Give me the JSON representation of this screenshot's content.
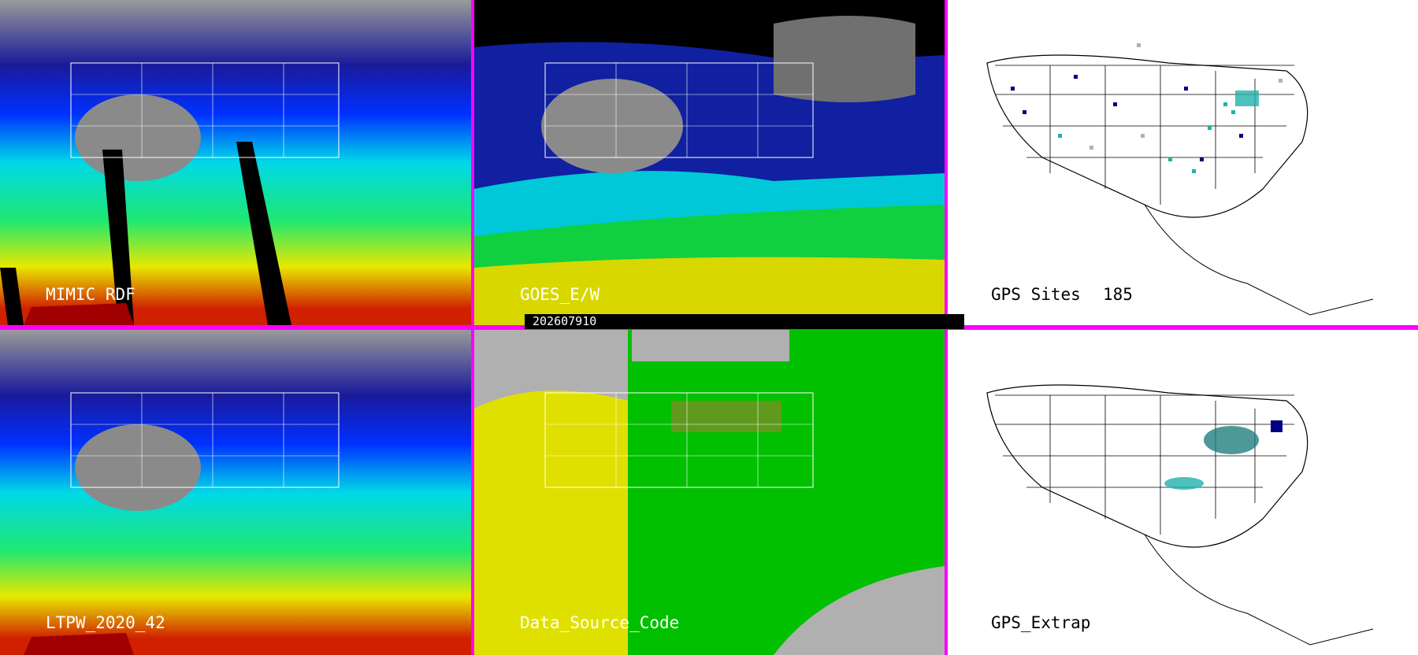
{
  "timestamp": "202607910",
  "panels": [
    {
      "id": "mimic",
      "label": "MIMIC RDF"
    },
    {
      "id": "goes",
      "label": "GOES_E/W"
    },
    {
      "id": "gps-sites",
      "label": "GPS Sites",
      "count": "185"
    },
    {
      "id": "ltpw",
      "label": "LTPW_2020_42"
    },
    {
      "id": "data-source",
      "label": "Data_Source_Code"
    },
    {
      "id": "gps-extrap",
      "label": "GPS_Extrap"
    }
  ],
  "colors": {
    "divider": "#ff00ff",
    "tpw_scale": [
      "#808080",
      "#000080",
      "#0000ff",
      "#00e0e0",
      "#00ff80",
      "#ffff00",
      "#ff8000",
      "#c00000"
    ],
    "source_yellow": "#e0e000",
    "source_green": "#00c000",
    "source_gray": "#b0b0b0",
    "site_navy": "#000080",
    "site_teal": "#20b2aa",
    "site_gray": "#b0b0b0"
  }
}
